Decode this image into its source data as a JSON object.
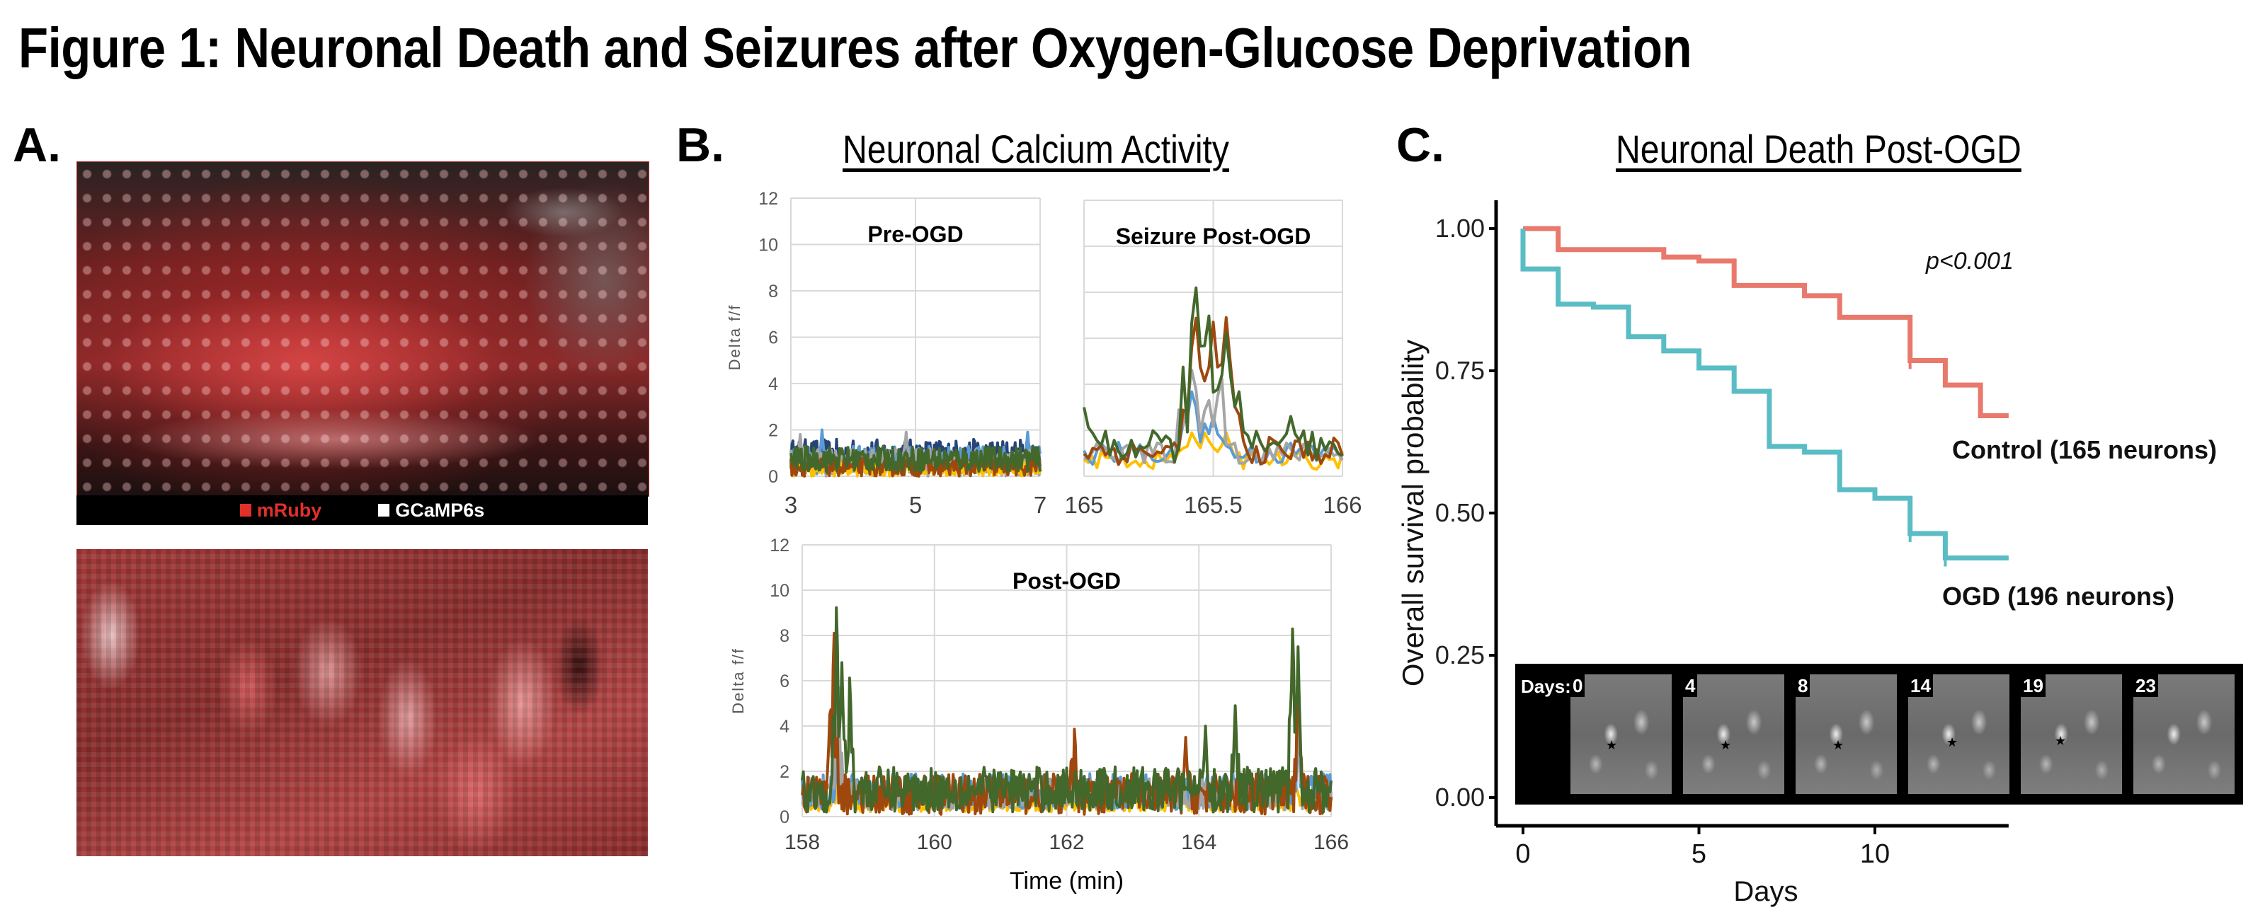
{
  "figure_title": "Figure 1: Neuronal Death and Seizures after Oxygen-Glucose Deprivation",
  "panel_a": {
    "label": "A.",
    "legend": [
      {
        "name": "mRuby",
        "color": "#e0302a"
      },
      {
        "name": "GCaMP6s",
        "color": "#ffffff"
      }
    ]
  },
  "panel_b": {
    "label": "B.",
    "title": "Neuronal Calcium Activity"
  },
  "panel_c": {
    "label": "C.",
    "title": "Neuronal Death Post-OGD",
    "inset": {
      "prefix": "Days:",
      "tiles": [
        "0",
        "4",
        "8",
        "14",
        "19",
        "23"
      ]
    }
  },
  "chart_data": [
    {
      "id": "pre-ogd",
      "type": "line",
      "title": "Pre-OGD",
      "xlabel": "",
      "ylabel": "Delta f/f",
      "xlim": [
        3,
        7
      ],
      "ylim": [
        0,
        12
      ],
      "xticks": [
        "3",
        "5",
        "7"
      ],
      "yticks": [
        "0",
        "2",
        "4",
        "6",
        "8",
        "10",
        "12"
      ],
      "grid": true,
      "series": [
        {
          "name": "navy",
          "color": "#264478",
          "baseline": 0.9,
          "noise": 0.7,
          "peaks": []
        },
        {
          "name": "blue",
          "color": "#5b9bd5",
          "baseline": 0.7,
          "noise": 0.6,
          "peaks": [
            [
              3.5,
              2.0
            ],
            [
              6.8,
              1.9
            ]
          ]
        },
        {
          "name": "gray",
          "color": "#a5a5a5",
          "baseline": 0.6,
          "noise": 0.6,
          "peaks": [
            [
              3.15,
              1.8
            ],
            [
              4.85,
              1.9
            ]
          ]
        },
        {
          "name": "yellow",
          "color": "#ffc000",
          "baseline": 0.3,
          "noise": 0.3,
          "peaks": []
        },
        {
          "name": "orange",
          "color": "#9e480e",
          "baseline": 0.4,
          "noise": 0.4,
          "peaks": []
        },
        {
          "name": "green",
          "color": "#43682b",
          "baseline": 0.75,
          "noise": 0.55,
          "peaks": []
        }
      ]
    },
    {
      "id": "seizure-post-ogd",
      "type": "line",
      "title": "Seizure Post-OGD",
      "xlabel": "",
      "ylabel": "",
      "xlim": [
        165,
        166
      ],
      "ylim": [
        0,
        12
      ],
      "xticks": [
        "165",
        "165.5",
        "166"
      ],
      "yticks": [],
      "grid": true,
      "series": [
        {
          "name": "yellow",
          "color": "#ffc000",
          "baseline": 0.7,
          "noise": 0.4,
          "peaks": [
            [
              165.42,
              2.0
            ],
            [
              165.47,
              2.0
            ],
            [
              165.55,
              1.9
            ]
          ]
        },
        {
          "name": "blue",
          "color": "#5b9bd5",
          "baseline": 1.0,
          "noise": 0.5,
          "peaks": [
            [
              165.42,
              3.9
            ],
            [
              165.5,
              2.6
            ]
          ]
        },
        {
          "name": "gray",
          "color": "#a5a5a5",
          "baseline": 1.0,
          "noise": 0.5,
          "peaks": [
            [
              165.42,
              4.9
            ],
            [
              165.48,
              3.5
            ],
            [
              165.53,
              4.5
            ]
          ]
        },
        {
          "name": "orange",
          "color": "#9e480e",
          "baseline": 1.1,
          "noise": 0.6,
          "peaks": [
            [
              165.43,
              7.3
            ],
            [
              165.5,
              6.7
            ],
            [
              165.55,
              6.9
            ]
          ]
        },
        {
          "name": "green",
          "color": "#43682b",
          "baseline": 1.3,
          "noise": 0.7,
          "peaks": [
            [
              165.0,
              3.0
            ],
            [
              165.43,
              8.7
            ],
            [
              165.48,
              7.4
            ],
            [
              165.55,
              6.2
            ],
            [
              165.8,
              2.6
            ]
          ]
        }
      ]
    },
    {
      "id": "post-ogd",
      "type": "line",
      "title": "Post-OGD",
      "xlabel": "Time (min)",
      "ylabel": "Delta f/f",
      "xlim": [
        158,
        166
      ],
      "ylim": [
        0,
        12
      ],
      "xticks": [
        "158",
        "160",
        "162",
        "164",
        "166"
      ],
      "yticks": [
        "0",
        "2",
        "4",
        "6",
        "8",
        "10",
        "12"
      ],
      "grid": true,
      "series": [
        {
          "name": "yellow",
          "color": "#ffc000",
          "baseline": 0.6,
          "noise": 0.4,
          "peaks": [
            [
              158.52,
              2.0
            ],
            [
              165.45,
              1.9
            ]
          ]
        },
        {
          "name": "blue",
          "color": "#5b9bd5",
          "baseline": 1.1,
          "noise": 0.8,
          "peaks": [
            [
              158.55,
              4.0
            ],
            [
              165.5,
              4.0
            ]
          ]
        },
        {
          "name": "gray",
          "color": "#a5a5a5",
          "baseline": 1.0,
          "noise": 0.7,
          "peaks": [
            [
              158.55,
              5.7
            ],
            [
              165.5,
              4.5
            ]
          ]
        },
        {
          "name": "orange",
          "color": "#9e480e",
          "baseline": 1.0,
          "noise": 0.9,
          "peaks": [
            [
              158.42,
              4.8
            ],
            [
              158.48,
              8.6
            ],
            [
              162.12,
              4.1
            ],
            [
              163.8,
              3.5
            ],
            [
              165.5,
              7.0
            ]
          ]
        },
        {
          "name": "green",
          "color": "#43682b",
          "baseline": 1.2,
          "noise": 1.0,
          "peaks": [
            [
              158.52,
              9.8
            ],
            [
              158.6,
              6.8
            ],
            [
              158.72,
              6.5
            ],
            [
              164.1,
              4.0
            ],
            [
              164.55,
              4.9
            ],
            [
              165.42,
              8.8
            ],
            [
              165.5,
              7.5
            ]
          ]
        }
      ]
    },
    {
      "id": "survival",
      "type": "line",
      "subtype": "kaplan-meier",
      "title": "",
      "xlabel": "Days",
      "ylabel": "Overall survival probability",
      "xlim": [
        0,
        13.8
      ],
      "ylim": [
        0,
        1
      ],
      "xticks": [
        "0",
        "5",
        "10"
      ],
      "yticks": [
        "0.00",
        "0.25",
        "0.50",
        "0.75",
        "1.00"
      ],
      "annotation": "p<0.001",
      "series": [
        {
          "name": "Control (165 neurons)",
          "color": "#e8796c",
          "steps": [
            [
              0,
              1.0
            ],
            [
              1,
              0.963
            ],
            [
              4,
              0.95
            ],
            [
              5,
              0.943
            ],
            [
              6,
              0.9
            ],
            [
              8,
              0.882
            ],
            [
              9,
              0.844
            ],
            [
              11,
              0.768
            ],
            [
              12,
              0.725
            ],
            [
              13,
              0.671
            ]
          ],
          "end": 13.8,
          "censored": [
            11
          ]
        },
        {
          "name": "OGD (196 neurons)",
          "color": "#5abcc4",
          "steps": [
            [
              0,
              0.929
            ],
            [
              1,
              0.867
            ],
            [
              2,
              0.862
            ],
            [
              3,
              0.81
            ],
            [
              4,
              0.785
            ],
            [
              5,
              0.755
            ],
            [
              6,
              0.714
            ],
            [
              7,
              0.617
            ],
            [
              8,
              0.607
            ],
            [
              9,
              0.541
            ],
            [
              10,
              0.526
            ],
            [
              11,
              0.464
            ],
            [
              12,
              0.421
            ]
          ],
          "end": 13.8,
          "censored": [
            11,
            12
          ]
        }
      ]
    }
  ]
}
